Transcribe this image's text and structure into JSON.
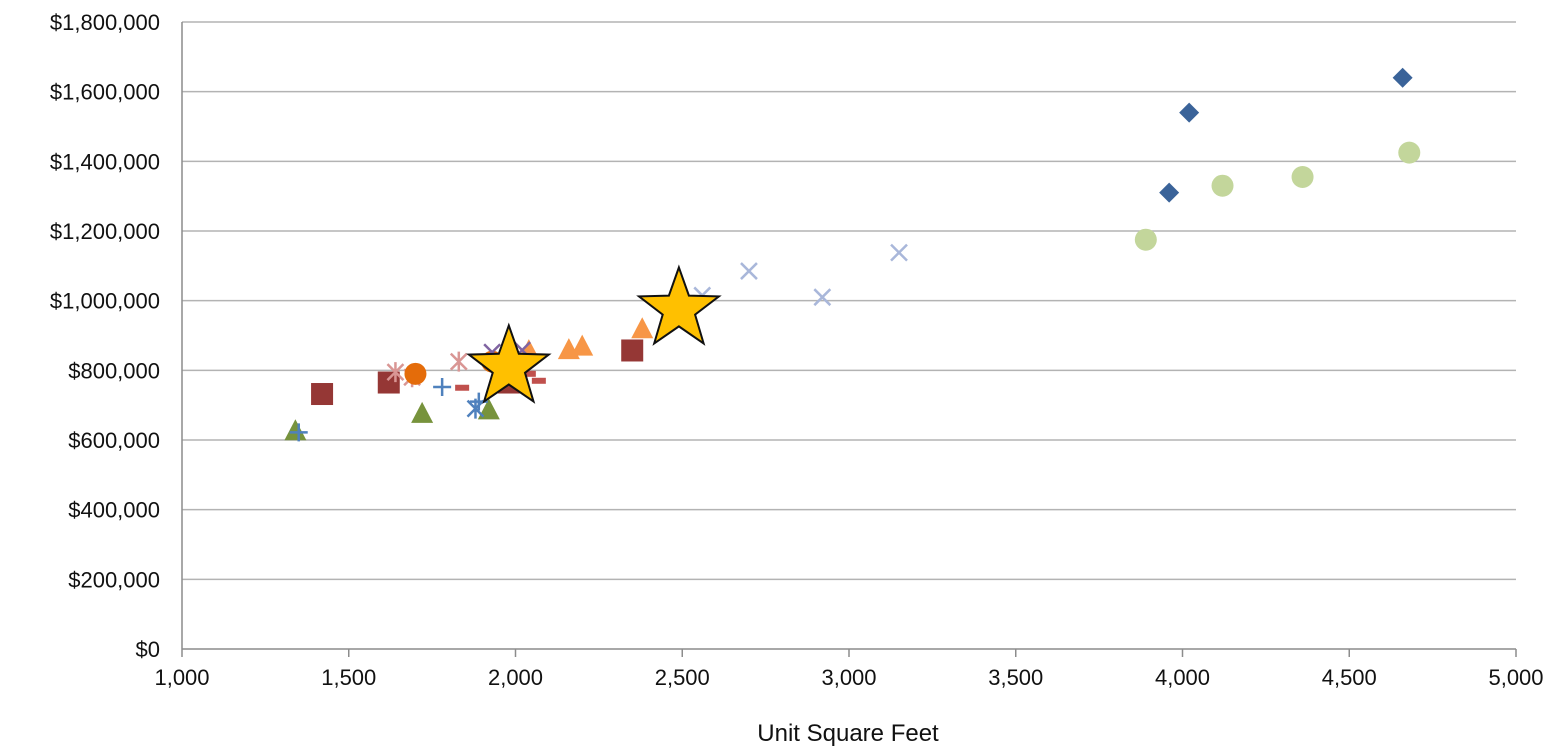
{
  "chart_data": {
    "type": "scatter",
    "title": "",
    "xlabel": "Unit Square Feet",
    "ylabel": "",
    "xlim": [
      1000,
      5000
    ],
    "ylim": [
      0,
      1800000
    ],
    "x_ticks": [
      1000,
      1500,
      2000,
      2500,
      3000,
      3500,
      4000,
      4500,
      5000
    ],
    "x_tick_labels": [
      "1,000",
      "1,500",
      "2,000",
      "2,500",
      "3,000",
      "3,500",
      "4,000",
      "4,500",
      "5,000"
    ],
    "y_ticks": [
      0,
      200000,
      400000,
      600000,
      800000,
      1000000,
      1200000,
      1400000,
      1600000,
      1800000
    ],
    "y_tick_labels": [
      "$0",
      "$200,000",
      "$400,000",
      "$600,000",
      "$800,000",
      "$1,000,000",
      "$1,200,000",
      "$1,400,000",
      "$1,600,000",
      "$1,800,000"
    ],
    "grid": "horizontal",
    "legend": "none",
    "series": [
      {
        "marker": "diamond",
        "color": "#3A6399",
        "points": [
          [
            3960,
            1310000
          ],
          [
            4020,
            1540000
          ],
          [
            4660,
            1640000
          ]
        ]
      },
      {
        "marker": "circle",
        "color": "#C3D69B",
        "points": [
          [
            3890,
            1175000
          ],
          [
            4120,
            1330000
          ],
          [
            4360,
            1355000
          ],
          [
            4680,
            1425000
          ]
        ]
      },
      {
        "marker": "x",
        "color": "#A9B7DA",
        "points": [
          [
            2560,
            1015000
          ],
          [
            2700,
            1085000
          ],
          [
            2920,
            1010000
          ],
          [
            3150,
            1138000
          ]
        ]
      },
      {
        "marker": "triangle",
        "color": "#F79646",
        "points": [
          [
            2040,
            855000
          ],
          [
            2160,
            858000
          ],
          [
            2200,
            868000
          ],
          [
            2380,
            918000
          ]
        ]
      },
      {
        "marker": "square",
        "color": "#953735",
        "points": [
          [
            1420,
            732000
          ],
          [
            1620,
            765000
          ],
          [
            1980,
            765000
          ],
          [
            2350,
            857000
          ]
        ]
      },
      {
        "marker": "triangle",
        "color": "#77933C",
        "points": [
          [
            1340,
            625000
          ],
          [
            1720,
            675000
          ],
          [
            1920,
            685000
          ]
        ]
      },
      {
        "marker": "asterisk",
        "color": "#D99694",
        "points": [
          [
            1640,
            795000
          ],
          [
            1690,
            780000
          ],
          [
            1830,
            825000
          ]
        ]
      },
      {
        "marker": "circle",
        "color": "#E46C0A",
        "points": [
          [
            1700,
            790000
          ],
          [
            1930,
            825000
          ]
        ]
      },
      {
        "marker": "plus",
        "color": "#4F81BD",
        "points": [
          [
            1350,
            622000
          ],
          [
            1780,
            752000
          ],
          [
            1890,
            710000
          ]
        ]
      },
      {
        "marker": "asterisk",
        "color": "#4F81BD",
        "points": [
          [
            1880,
            690000
          ]
        ]
      },
      {
        "marker": "x",
        "color": "#8064A2",
        "points": [
          [
            1930,
            852000
          ],
          [
            2020,
            858000
          ]
        ]
      },
      {
        "marker": "dash",
        "color": "#C0504D",
        "points": [
          [
            1840,
            750000
          ],
          [
            2040,
            790000
          ],
          [
            2070,
            770000
          ]
        ]
      },
      {
        "marker": "star",
        "color": "#FFC000",
        "points": [
          [
            1980,
            808000
          ],
          [
            2490,
            975000
          ]
        ]
      }
    ]
  }
}
